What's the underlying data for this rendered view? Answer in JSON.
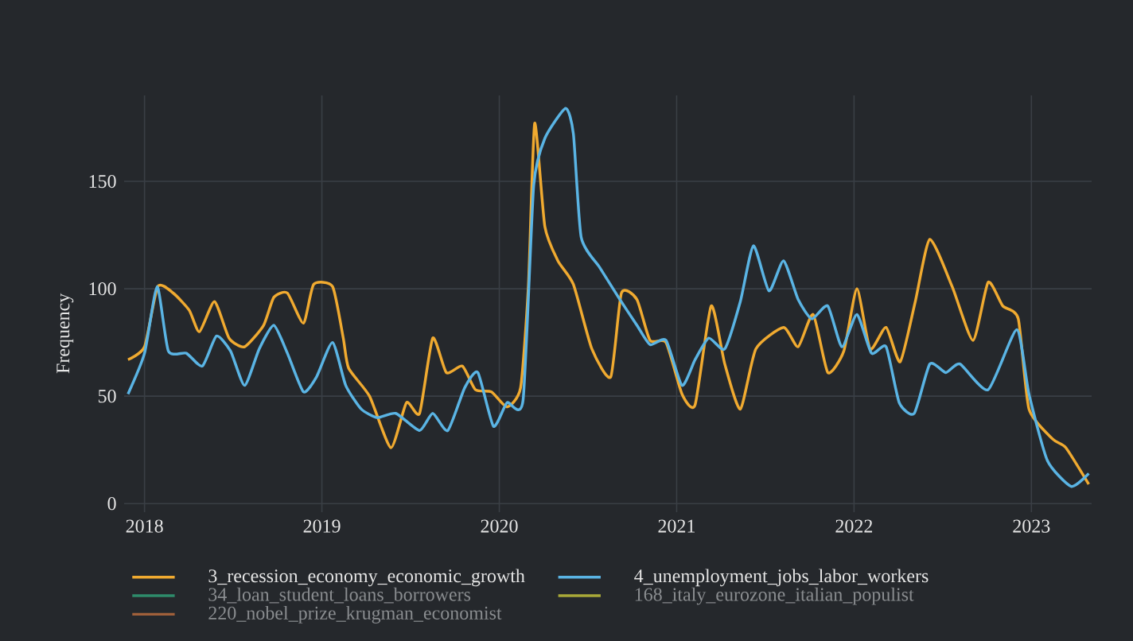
{
  "chart_data": {
    "type": "line",
    "ylabel": "Frequency",
    "xlim": [
      "2017-11-20",
      "2023-05-05"
    ],
    "ylim": [
      -4,
      190
    ],
    "xticks": [
      "2018",
      "2019",
      "2020",
      "2021",
      "2022",
      "2023"
    ],
    "yticks": [
      0,
      50,
      100,
      150
    ],
    "grid": true,
    "legend": "bottom",
    "series": [
      {
        "name": "3_recession_economy_economic_growth",
        "color": "#f0aa30",
        "x": [
          "2017-11-28",
          "2018-01-01",
          "2018-01-28",
          "2018-03-01",
          "2018-04-03",
          "2018-04-24",
          "2018-05-25",
          "2018-06-24",
          "2018-07-26",
          "2018-09-03",
          "2018-09-24",
          "2018-10-22",
          "2018-11-24",
          "2018-12-15",
          "2019-01-23",
          "2019-02-14",
          "2019-02-25",
          "2019-04-09",
          "2019-05-23",
          "2019-06-24",
          "2019-07-21",
          "2019-08-17",
          "2019-09-14",
          "2019-10-17",
          "2019-11-13",
          "2019-12-16",
          "2020-01-17",
          "2020-02-14",
          "2020-03-01",
          "2020-03-14",
          "2020-04-04",
          "2020-05-01",
          "2020-06-02",
          "2020-07-10",
          "2020-08-18",
          "2020-09-09",
          "2020-10-11",
          "2020-11-07",
          "2020-12-10",
          "2021-01-12",
          "2021-02-08",
          "2021-03-13",
          "2021-04-10",
          "2021-05-12",
          "2021-06-13",
          "2021-08-09",
          "2021-09-08",
          "2021-10-09",
          "2021-11-08",
          "2021-12-11",
          "2022-01-07",
          "2022-02-03",
          "2022-03-08",
          "2022-04-06",
          "2022-05-07",
          "2022-06-06",
          "2022-07-22",
          "2022-09-03",
          "2022-10-04",
          "2022-11-03",
          "2022-12-05",
          "2022-12-27",
          "2023-02-14",
          "2023-03-13",
          "2023-04-29"
        ],
        "values": [
          67,
          73,
          101,
          98,
          90,
          80,
          94,
          77,
          73,
          83,
          96,
          98,
          84,
          102,
          101,
          77,
          63,
          50,
          26,
          47,
          42,
          77,
          61,
          64,
          53,
          52,
          45,
          54,
          101,
          177,
          129,
          113,
          102,
          72,
          59,
          98,
          95,
          76,
          75,
          51,
          46,
          92,
          65,
          44,
          72,
          82,
          73,
          88,
          61,
          71,
          100,
          72,
          82,
          66,
          94,
          123,
          101,
          76,
          103,
          92,
          86,
          44,
          30,
          26,
          9
        ]
      },
      {
        "name": "4_unemployment_jobs_labor_workers",
        "color": "#5ab4e4",
        "x": [
          "2017-11-28",
          "2018-01-01",
          "2018-01-27",
          "2018-02-19",
          "2018-03-28",
          "2018-04-30",
          "2018-05-29",
          "2018-06-27",
          "2018-07-26",
          "2018-08-25",
          "2018-09-24",
          "2018-10-22",
          "2018-11-24",
          "2018-12-21",
          "2019-01-23",
          "2019-02-19",
          "2019-03-23",
          "2019-04-25",
          "2019-06-02",
          "2019-07-21",
          "2019-08-17",
          "2019-09-17",
          "2019-10-22",
          "2019-11-18",
          "2019-12-20",
          "2020-01-17",
          "2020-02-19",
          "2020-03-12",
          "2020-04-04",
          "2020-05-17",
          "2020-06-02",
          "2020-06-18",
          "2020-07-26",
          "2020-09-03",
          "2020-10-11",
          "2020-11-07",
          "2020-12-10",
          "2021-01-12",
          "2021-02-08",
          "2021-03-08",
          "2021-04-10",
          "2021-05-12",
          "2021-06-08",
          "2021-07-10",
          "2021-08-09",
          "2021-09-08",
          "2021-10-06",
          "2021-11-08",
          "2021-12-07",
          "2022-01-07",
          "2022-02-06",
          "2022-03-08",
          "2022-04-04",
          "2022-05-05",
          "2022-06-06",
          "2022-07-09",
          "2022-08-07",
          "2022-10-04",
          "2022-12-02",
          "2022-12-27",
          "2023-02-03",
          "2023-03-24",
          "2023-04-29"
        ],
        "values": [
          51,
          70,
          101,
          71,
          70,
          64,
          78,
          71,
          55,
          72,
          83,
          70,
          52,
          59,
          75,
          55,
          44,
          40,
          42,
          34,
          42,
          34,
          54,
          61,
          36,
          47,
          48,
          148,
          170,
          184,
          172,
          124,
          110,
          96,
          83,
          74,
          76,
          55,
          67,
          77,
          72,
          94,
          120,
          99,
          113,
          95,
          86,
          92,
          73,
          88,
          70,
          73,
          47,
          42,
          65,
          61,
          65,
          53,
          81,
          51,
          20,
          8,
          14
        ]
      },
      {
        "name": "34_loan_student_loans_borrowers",
        "color": "#2e8b6a"
      },
      {
        "name": "168_italy_eurozone_italian_populist",
        "color": "#a8a838"
      },
      {
        "name": "220_nobel_prize_krugman_economist",
        "color": "#a0603a"
      }
    ]
  }
}
